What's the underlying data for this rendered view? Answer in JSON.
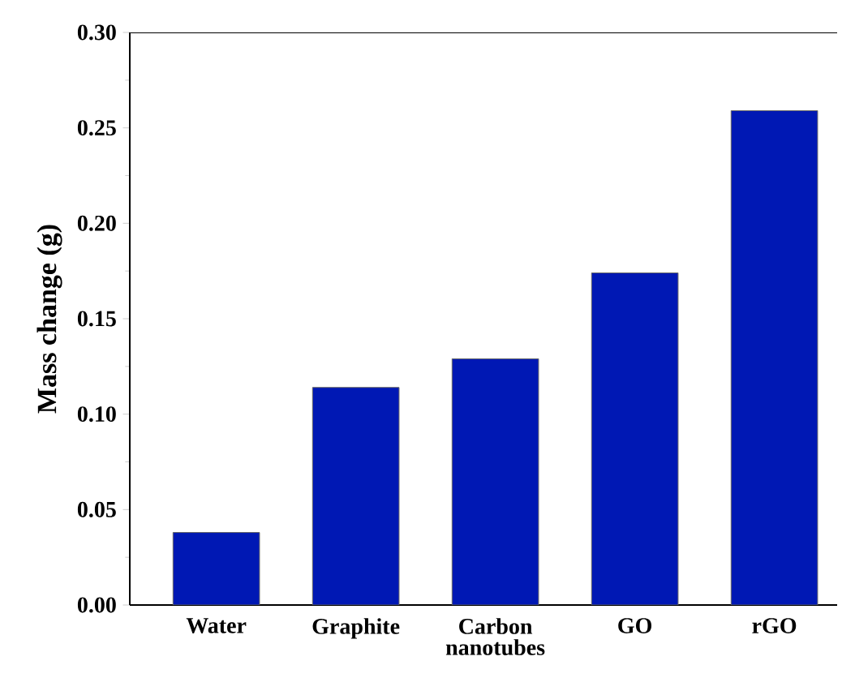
{
  "chart_data": {
    "type": "bar",
    "ylabel": "Mass change (g)",
    "categories": [
      "Water",
      "Graphite",
      "Carbon nanotubes",
      "GO",
      "rGO"
    ],
    "values": [
      0.038,
      0.114,
      0.129,
      0.174,
      0.259
    ],
    "color": "#0018b4",
    "ylim": [
      0,
      0.3
    ],
    "yticks": [
      {
        "value": 0,
        "label": "0.00"
      },
      0.05,
      {
        "value": 0.1,
        "label": "0.10"
      },
      0.15,
      {
        "value": 0.2,
        "label": "0.20"
      },
      0.25,
      {
        "value": 0.3,
        "label": "0.30"
      }
    ]
  }
}
